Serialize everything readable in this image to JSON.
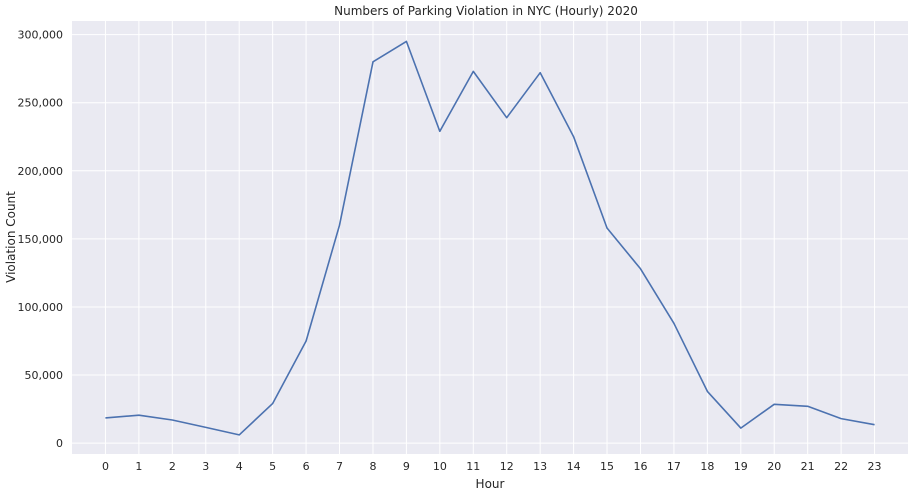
{
  "chart_data": {
    "type": "line",
    "title": "Numbers of Parking Violation in NYC (Hourly) 2020",
    "xlabel": "Hour",
    "ylabel": "Violation Count",
    "x": [
      0,
      1,
      2,
      3,
      4,
      5,
      6,
      7,
      8,
      9,
      10,
      11,
      12,
      13,
      14,
      15,
      16,
      17,
      18,
      19,
      20,
      21,
      22,
      23
    ],
    "x_tick_labels": [
      "0",
      "1",
      "2",
      "3",
      "4",
      "5",
      "6",
      "7",
      "8",
      "9",
      "10",
      "11",
      "12",
      "13",
      "14",
      "15",
      "16",
      "17",
      "18",
      "19",
      "20",
      "21",
      "22",
      "23"
    ],
    "y_ticks": [
      0,
      50000,
      100000,
      150000,
      200000,
      250000,
      300000
    ],
    "y_tick_labels": [
      "0",
      "50,000",
      "100,000",
      "150,000",
      "200,000",
      "250,000",
      "300,000"
    ],
    "ylim": [
      -8000,
      310000
    ],
    "xlim": [
      -1,
      24
    ],
    "grid": true,
    "background": "#eaeaf2",
    "grid_color": "#ffffff",
    "series": [
      {
        "color": "#4c72b0",
        "values": [
          18500,
          20500,
          17000,
          11500,
          6000,
          29000,
          75000,
          160000,
          280000,
          295000,
          229000,
          273000,
          239000,
          272000,
          225000,
          158000,
          128000,
          88000,
          38000,
          11000,
          28500,
          27000,
          18000,
          13500
        ]
      }
    ]
  }
}
